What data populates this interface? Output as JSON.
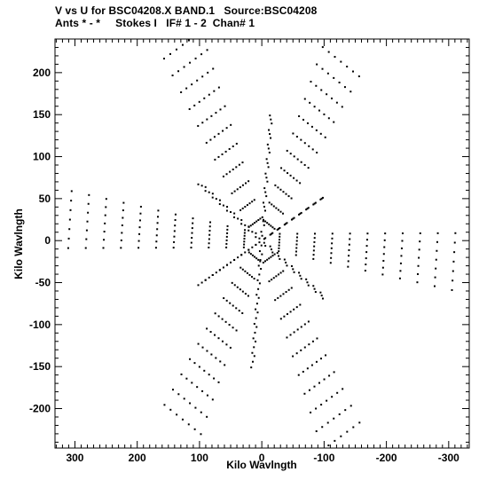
{
  "header": {
    "title_line1": "V vs U for BSC04208.X BAND.1   Source:BSC04208",
    "title_line2": "Ants * - *     Stokes I   IF# 1 - 2  Chan# 1"
  },
  "chart_data": {
    "type": "scatter",
    "title": "V vs U for BSC04208.X BAND.1   Source:BSC04208",
    "subtitle": "Ants * - *     Stokes I   IF# 1 - 2  Chan# 1",
    "xlabel": "Kilo Wavlngth",
    "ylabel": "Kilo Wavlngth",
    "xlim": [
      332,
      -333
    ],
    "ylim": [
      -247,
      240
    ],
    "x_reversed": true,
    "grid": false,
    "xticks": [
      300,
      200,
      100,
      0,
      -100,
      -200,
      -300
    ],
    "xtick_labels": [
      "300",
      "200",
      "100",
      "0",
      "-100",
      "-200",
      "-300"
    ],
    "yticks": [
      200,
      150,
      100,
      50,
      0,
      -50,
      -100,
      -150,
      -200
    ],
    "ytick_labels": [
      "200",
      "150",
      "100",
      "50",
      "0",
      "-50",
      "-100",
      "-150",
      "-200"
    ],
    "marker_color": "#000000",
    "pattern": "six-armed snowflake of uv tracks with conjugate symmetry",
    "arms": [
      {
        "u": 127,
        "v": 233
      },
      {
        "u": -127,
        "v": 213
      },
      {
        "u": 308,
        "v": 25
      },
      {
        "u": -308,
        "v": -25
      },
      {
        "u": 127,
        "v": -213
      },
      {
        "u": -127,
        "v": -233
      }
    ],
    "dense_spokes": [
      {
        "u": -15,
        "v": 150
      },
      {
        "u": 15,
        "v": -150
      },
      {
        "u": 100,
        "v": 68
      },
      {
        "u": -100,
        "v": -68
      },
      {
        "u": -100,
        "v": 52
      },
      {
        "u": 100,
        "v": -52
      }
    ]
  }
}
